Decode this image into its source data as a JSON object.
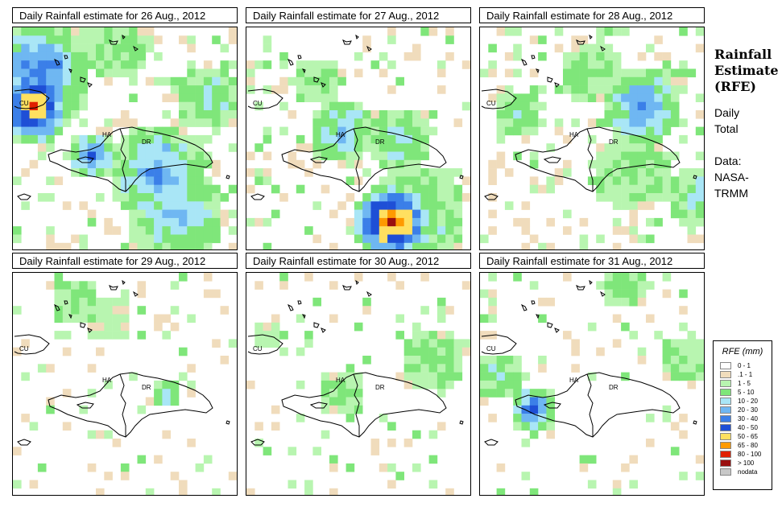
{
  "panels": [
    {
      "title": "Daily Rainfall estimate for  26 Aug., 2012",
      "pattern": "p26"
    },
    {
      "title": "Daily Rainfall estimate for  27 Aug., 2012",
      "pattern": "p27"
    },
    {
      "title": "Daily Rainfall estimate for  28 Aug., 2012",
      "pattern": "p28"
    },
    {
      "title": "Daily Rainfall estimate for  29 Aug., 2012",
      "pattern": "p29"
    },
    {
      "title": "Daily Rainfall estimate for  30 Aug., 2012",
      "pattern": "p30"
    },
    {
      "title": "Daily Rainfall estimate for  31 Aug., 2012",
      "pattern": "p31"
    }
  ],
  "map_labels": {
    "cu": "CU",
    "ha": "HA",
    "dr": "DR"
  },
  "sidebar": {
    "title_line1": "Rainfall",
    "title_line2": "Estimate",
    "title_line3": "(RFE)",
    "daily_line1": "Daily",
    "daily_line2": "Total",
    "data_line1": "Data:",
    "data_line2": "NASA-",
    "data_line3": "TRMM"
  },
  "legend": {
    "title": "RFE (mm)",
    "items": [
      {
        "label": "0 - 1",
        "color": "#ffffff"
      },
      {
        "label": ".1 - 1",
        "color": "#f0dcbc"
      },
      {
        "label": "1 - 5",
        "color": "#b8f5b0"
      },
      {
        "label": "5 - 10",
        "color": "#7fe67a"
      },
      {
        "label": "10 - 20",
        "color": "#a9e6f6"
      },
      {
        "label": "20 - 30",
        "color": "#6fb7f2"
      },
      {
        "label": "30 - 40",
        "color": "#3b7fe8"
      },
      {
        "label": "40 - 50",
        "color": "#1e4fd6"
      },
      {
        "label": "50 - 65",
        "color": "#ffe060"
      },
      {
        "label": "65 - 80",
        "color": "#ff9a00"
      },
      {
        "label": "80 - 100",
        "color": "#e02000"
      },
      {
        "label": "> 100",
        "color": "#9a1010"
      },
      {
        "label": "nodata",
        "color": "#c8c8c8"
      }
    ]
  }
}
